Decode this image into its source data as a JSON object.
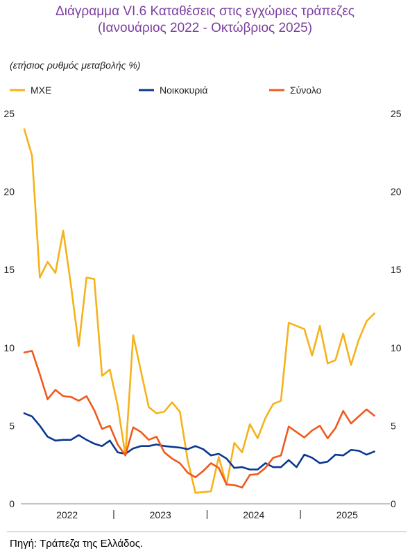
{
  "title_line1": "Διάγραμμα VI.6 Καταθέσεις στις εγχώριες τράπεζες",
  "title_line2": "(Ιανουάριος 2022 - Οκτώβριος 2025)",
  "unit_label": "(ετήσιος ρυθμός μεταβολής %)",
  "source": "Πηγή: Τράπεζα της Ελλάδος.",
  "chart_data": {
    "type": "line",
    "x_start": "2022-01",
    "x_end": "2025-10",
    "xlim": [
      "2022-01",
      "2025-12"
    ],
    "year_labels": [
      "2022",
      "2023",
      "2024",
      "2025"
    ],
    "ylim": [
      0,
      25
    ],
    "yticks": [
      "0",
      "5",
      "10",
      "15",
      "20",
      "25"
    ],
    "legend_position": "top",
    "grid": false,
    "series": [
      {
        "name": "ΜΧΕ",
        "color": "#f5b21a",
        "values": [
          24.0,
          22.3,
          14.5,
          15.5,
          14.8,
          17.5,
          14.0,
          10.1,
          14.5,
          14.4,
          8.2,
          8.6,
          6.3,
          3.1,
          10.8,
          8.5,
          6.2,
          5.8,
          5.9,
          6.5,
          5.9,
          2.8,
          0.7,
          0.75,
          0.8,
          3.0,
          1.2,
          3.9,
          3.3,
          5.1,
          4.2,
          5.5,
          6.4,
          6.6,
          11.6,
          11.4,
          11.2,
          9.5,
          11.4,
          9.0,
          9.2,
          10.9,
          8.9,
          10.5,
          11.7,
          12.2
        ]
      },
      {
        "name": "Νοικοκυριά",
        "color": "#0a3790",
        "values": [
          5.8,
          5.6,
          5.0,
          4.3,
          4.05,
          4.1,
          4.1,
          4.4,
          4.1,
          3.85,
          3.7,
          4.05,
          3.3,
          3.2,
          3.55,
          3.7,
          3.7,
          3.8,
          3.7,
          3.65,
          3.6,
          3.5,
          3.7,
          3.5,
          3.1,
          3.2,
          2.9,
          2.3,
          2.35,
          2.2,
          2.2,
          2.6,
          2.35,
          2.35,
          2.8,
          2.35,
          3.15,
          2.95,
          2.6,
          2.7,
          3.15,
          3.1,
          3.45,
          3.4,
          3.15,
          3.35
        ]
      },
      {
        "name": "Σύνολο",
        "color": "#ef5a1c",
        "values": [
          9.7,
          9.8,
          8.3,
          6.7,
          7.3,
          6.9,
          6.85,
          6.6,
          6.9,
          6.0,
          4.8,
          5.0,
          3.8,
          3.1,
          4.9,
          4.6,
          4.1,
          4.3,
          3.3,
          2.9,
          2.6,
          2.0,
          1.7,
          2.1,
          2.6,
          2.3,
          1.25,
          1.2,
          1.05,
          1.85,
          1.9,
          2.3,
          2.95,
          3.1,
          4.95,
          4.6,
          4.25,
          4.7,
          5.0,
          4.2,
          4.85,
          5.95,
          5.15,
          5.6,
          6.05,
          5.65
        ]
      }
    ]
  }
}
